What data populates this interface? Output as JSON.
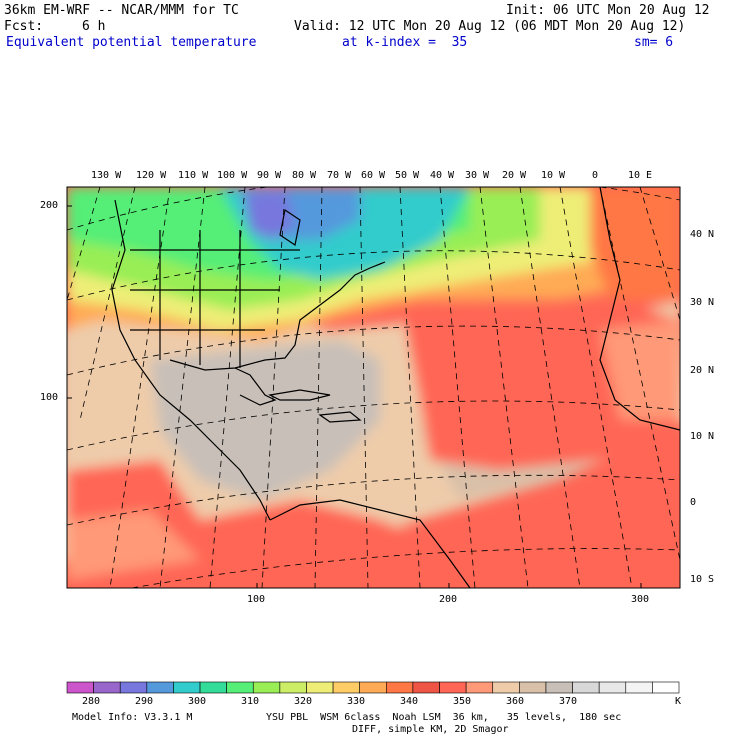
{
  "header": {
    "model": "36km EM-WRF -- NCAR/MMM for TC",
    "init": "Init: 06 UTC Mon 20 Aug 12",
    "fcst_label": "Fcst:",
    "fcst_value": "6 h",
    "valid": "Valid: 12 UTC Mon 20 Aug 12 (06 MDT Mon 20 Aug 12)",
    "field": "Equivalent potential temperature",
    "level": "at k-index =  35",
    "smooth": "sm= 6"
  },
  "map": {
    "top_lon_labels": [
      "130 W",
      "120 W",
      "110 W",
      "100 W",
      "90 W",
      "80 W",
      "70 W",
      "60 W",
      "50 W",
      "40 W",
      "30 W",
      "20 W",
      "10 W",
      "0",
      "10 E"
    ],
    "right_lat_labels": [
      "40 N",
      "30 N",
      "20 N",
      "10 N",
      "0",
      "10 S"
    ],
    "left_grid_labels": [
      "200",
      "100"
    ],
    "bottom_grid_labels": [
      "100",
      "200",
      "300"
    ]
  },
  "colorbar": {
    "labels": [
      "280",
      "290",
      "300",
      "310",
      "320",
      "330",
      "340",
      "350",
      "360",
      "370"
    ],
    "unit": "K",
    "colors": [
      "#cc55cc",
      "#9966cc",
      "#7777dd",
      "#5599dd",
      "#33cccc",
      "#33dd99",
      "#55ee77",
      "#99ee55",
      "#ccee66",
      "#eeee77",
      "#ffcc66",
      "#ffaa55",
      "#ff7744",
      "#ee5544",
      "#ff6655",
      "#ff9977",
      "#eeccaa",
      "#d9c0a8",
      "#c8bfb8",
      "#d8d8d8",
      "#e8e8e8",
      "#f4f4f4",
      "#ffffff"
    ]
  },
  "footer": {
    "model_info": "Model Info: V3.3.1 M",
    "physics_line1": "YSU PBL  WSM 6class  Noah LSM  36 km,   35 levels,  180 sec",
    "physics_line2": "DIFF, simple KM, 2D Smagor"
  }
}
